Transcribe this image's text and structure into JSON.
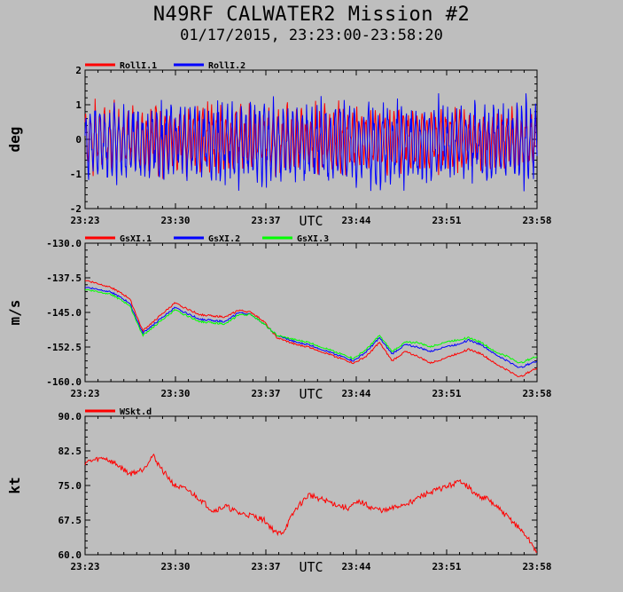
{
  "header": {
    "title": "N49RF CALWATER2 Mission #2",
    "subtitle": "01/17/2015, 23:23:00-23:58:20"
  },
  "colors": {
    "background": "#bebebe",
    "plot_bg": "#bebebe",
    "red": "#ff0000",
    "blue": "#0000ff",
    "green": "#00ff00"
  },
  "chart_data": [
    {
      "type": "line",
      "ylabel": "deg",
      "xlabel": "UTC",
      "ylim": [
        -2,
        2
      ],
      "yticks": [
        "2",
        "1",
        "0",
        "-1",
        "-2"
      ],
      "ytick_values": [
        2,
        1,
        0,
        -1,
        -2
      ],
      "xticks": [
        "23:23",
        "23:30",
        "23:37",
        "23:44",
        "23:51",
        "23:58"
      ],
      "xrange_minutes": [
        0,
        35.33
      ],
      "series": [
        {
          "name": "RollI.1",
          "color": "#ff0000",
          "base": 0.0,
          "noise": 0.45,
          "spike": 1.0,
          "seed": 3
        },
        {
          "name": "RollI.2",
          "color": "#0000ff",
          "base": -0.1,
          "noise": 0.6,
          "spike": 1.2,
          "seed": 7
        }
      ]
    },
    {
      "type": "line",
      "ylabel": "m/s",
      "xlabel": "UTC",
      "ylim": [
        -160,
        -130
      ],
      "yticks": [
        "-130.0",
        "-137.5",
        "-145.0",
        "-152.5",
        "-160.0"
      ],
      "ytick_values": [
        -130,
        -137.5,
        -145,
        -152.5,
        -160
      ],
      "xticks": [
        "23:23",
        "23:30",
        "23:37",
        "23:44",
        "23:51",
        "23:58"
      ],
      "xrange_minutes": [
        0,
        35.33
      ],
      "trend_x": [
        0,
        2,
        3.5,
        4.5,
        7,
        9,
        11,
        12,
        13,
        14,
        15,
        16.5,
        17.5,
        19,
        21,
        22,
        23,
        24,
        25,
        26,
        27,
        28,
        29,
        30,
        31,
        32,
        33,
        34,
        35.33
      ],
      "series": [
        {
          "name": "GsXI.1",
          "color": "#ff0000",
          "values": [
            -138,
            -139.5,
            -142,
            -149,
            -143,
            -145.5,
            -146,
            -144.5,
            -145,
            -147,
            -150.5,
            -152,
            -152.5,
            -154,
            -156,
            -154.5,
            -151.5,
            -155.5,
            -153.5,
            -154.5,
            -156,
            -155,
            -154,
            -153,
            -154,
            -156,
            -157.5,
            -159,
            -157
          ]
        },
        {
          "name": "GsXI.2",
          "color": "#0000ff",
          "values": [
            -139.5,
            -140.5,
            -143,
            -149.5,
            -144,
            -146.5,
            -147,
            -145,
            -145.5,
            -147.5,
            -150,
            -151.5,
            -152,
            -153.5,
            -155.5,
            -153.5,
            -150.5,
            -154,
            -152,
            -152.5,
            -153.5,
            -152.5,
            -152,
            -151,
            -152,
            -154,
            -155.5,
            -157,
            -155.5
          ]
        },
        {
          "name": "GsXI.3",
          "color": "#00ff00",
          "values": [
            -140,
            -141,
            -143.5,
            -150,
            -144.5,
            -147,
            -147.5,
            -145.5,
            -145.5,
            -147.5,
            -150,
            -151,
            -151.5,
            -153,
            -155,
            -153,
            -150,
            -153.5,
            -151.5,
            -151.5,
            -152.5,
            -151.5,
            -151,
            -150.5,
            -151.5,
            -153.5,
            -154.5,
            -156,
            -154.5
          ]
        }
      ]
    },
    {
      "type": "line",
      "ylabel": "kt",
      "xlabel": "UTC",
      "ylim": [
        60,
        90
      ],
      "yticks": [
        "90.0",
        "82.5",
        "75.0",
        "67.5",
        "60.0"
      ],
      "ytick_values": [
        90,
        82.5,
        75,
        67.5,
        60
      ],
      "xticks": [
        "23:23",
        "23:30",
        "23:37",
        "23:44",
        "23:51",
        "23:58"
      ],
      "xrange_minutes": [
        0,
        35.33
      ],
      "trend_x": [
        0,
        1.5,
        2.5,
        3.5,
        4.5,
        5.3,
        6,
        7,
        8,
        9,
        10,
        11,
        12,
        13,
        14,
        15,
        15.5,
        16.5,
        17.5,
        18.5,
        19.5,
        20.5,
        21.5,
        22.5,
        23.5,
        24.5,
        25.5,
        26.5,
        27.5,
        28.5,
        29.5,
        30.5,
        31.5,
        32.5,
        33.5,
        34.5,
        35.33
      ],
      "series": [
        {
          "name": "WSkt.d",
          "color": "#ff0000",
          "values": [
            80,
            81,
            79.5,
            77.5,
            78.5,
            81.5,
            78.5,
            75,
            74,
            72,
            69.5,
            70.5,
            69,
            68.5,
            67.5,
            64.5,
            65,
            70,
            73,
            72,
            71,
            70,
            71.5,
            70,
            69.5,
            70.5,
            71.5,
            73,
            74,
            75,
            76,
            73,
            72,
            69.5,
            67,
            64,
            60.5
          ]
        }
      ]
    }
  ]
}
